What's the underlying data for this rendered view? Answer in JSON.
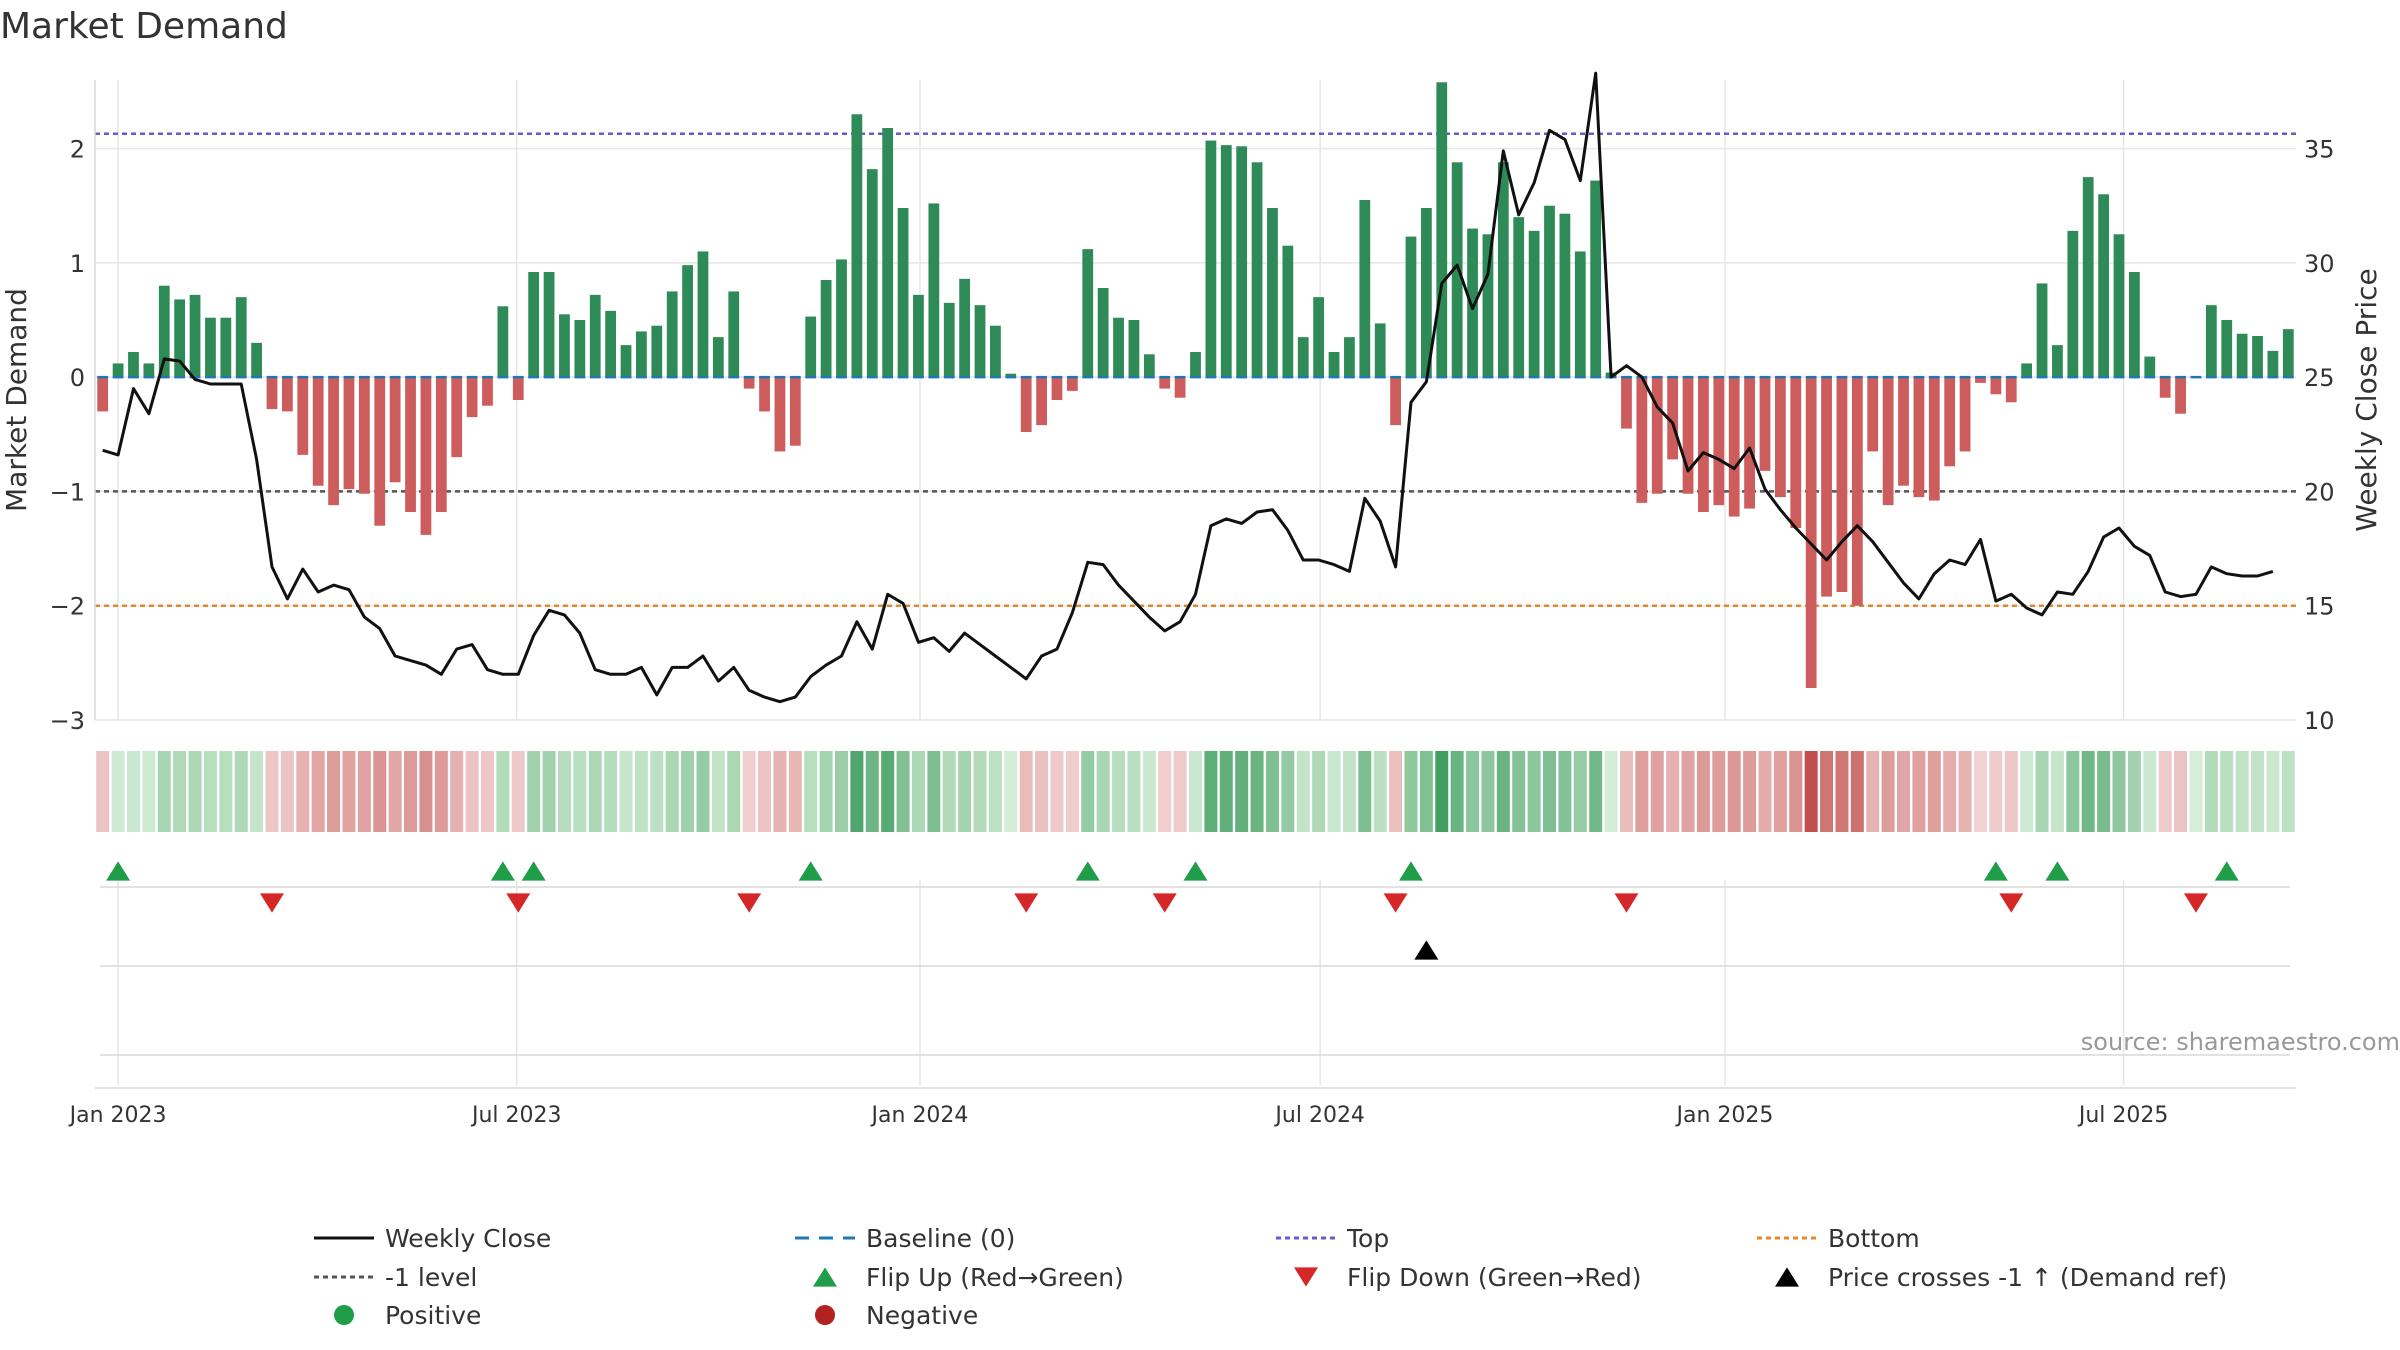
{
  "chart_data": {
    "type": "bar",
    "title": "Market Demand",
    "ylabel_left": "Market Demand",
    "ylabel_right": "Weekly Close Price",
    "ylim_left": [
      -3,
      2.6
    ],
    "ylim_right": [
      10,
      38
    ],
    "yticks_left": [
      2,
      1,
      0,
      -1,
      -2,
      -3
    ],
    "yticks_left_labels": [
      "2",
      "1",
      "0",
      "−1",
      "−2",
      "−3"
    ],
    "yticks_right": [
      35,
      30,
      25,
      20,
      15,
      10
    ],
    "x_start_week": -1,
    "x_ticks": [
      {
        "label": "Jan 2023",
        "week": 0
      },
      {
        "label": "Jul 2023",
        "week": 25.9
      },
      {
        "label": "Jan 2024",
        "week": 52.1
      },
      {
        "label": "Jul 2024",
        "week": 78.1
      },
      {
        "label": "Jan 2025",
        "week": 104.4
      },
      {
        "label": "Jul 2025",
        "week": 130.3
      }
    ],
    "series": [
      {
        "name": "Market Demand",
        "type": "bar",
        "values": [
          -0.3,
          0.12,
          0.22,
          0.12,
          0.8,
          0.68,
          0.72,
          0.52,
          0.52,
          0.7,
          0.3,
          -0.28,
          -0.3,
          -0.68,
          -0.95,
          -1.12,
          -0.98,
          -1.02,
          -1.3,
          -0.92,
          -1.18,
          -1.38,
          -1.18,
          -0.7,
          -0.35,
          -0.25,
          0.62,
          -0.2,
          0.92,
          0.92,
          0.55,
          0.5,
          0.72,
          0.58,
          0.28,
          0.4,
          0.45,
          0.75,
          0.98,
          1.1,
          0.35,
          0.75,
          -0.1,
          -0.3,
          -0.65,
          -0.6,
          0.53,
          0.85,
          1.03,
          2.3,
          1.82,
          2.18,
          1.48,
          0.72,
          1.52,
          0.65,
          0.86,
          0.63,
          0.45,
          0.03,
          -0.48,
          -0.42,
          -0.2,
          -0.12,
          1.12,
          0.78,
          0.52,
          0.5,
          0.2,
          -0.1,
          -0.18,
          0.22,
          2.07,
          2.03,
          2.02,
          1.88,
          1.48,
          1.15,
          0.35,
          0.7,
          0.22,
          0.35,
          1.55,
          0.47,
          -0.42,
          1.23,
          1.48,
          2.58,
          1.88,
          1.3,
          1.25,
          1.88,
          1.4,
          1.28,
          1.5,
          1.43,
          1.1,
          1.72,
          0.04,
          -0.45,
          -1.1,
          -1.02,
          -0.72,
          -1.02,
          -1.18,
          -1.12,
          -1.22,
          -1.15,
          -0.82,
          -1.05,
          -1.32,
          -2.72,
          -1.92,
          -1.88,
          -2.0,
          -0.65,
          -1.12,
          -0.95,
          -1.05,
          -1.08,
          -0.78,
          -0.65,
          -0.05,
          -0.15,
          -0.22,
          0.12,
          0.82,
          0.28,
          1.28,
          1.75,
          1.6,
          1.25,
          0.92,
          0.18,
          -0.18,
          -0.32,
          0.0,
          0.63,
          0.5,
          0.38,
          0.36,
          0.23,
          0.42
        ]
      },
      {
        "name": "Weekly Close",
        "type": "line",
        "values": [
          21.8,
          21.6,
          24.5,
          23.4,
          25.8,
          25.7,
          24.9,
          24.7,
          24.7,
          24.7,
          21.4,
          16.7,
          15.3,
          16.6,
          15.6,
          15.9,
          15.7,
          14.5,
          14.0,
          12.8,
          12.6,
          12.4,
          12.0,
          13.1,
          13.3,
          12.2,
          12.0,
          12.0,
          13.7,
          14.8,
          14.6,
          13.8,
          12.2,
          12.0,
          12.0,
          12.3,
          11.1,
          12.3,
          12.3,
          12.8,
          11.7,
          12.3,
          11.3,
          11.0,
          10.8,
          11.0,
          11.9,
          12.4,
          12.8,
          14.3,
          13.1,
          15.5,
          15.1,
          13.4,
          13.6,
          13.0,
          13.8,
          13.3,
          12.8,
          12.3,
          11.8,
          12.8,
          13.1,
          14.7,
          16.9,
          16.8,
          15.9,
          15.2,
          14.5,
          13.9,
          14.3,
          15.5,
          18.5,
          18.8,
          18.6,
          19.1,
          19.2,
          18.3,
          17.0,
          17.0,
          16.8,
          16.5,
          19.7,
          18.7,
          16.7,
          23.9,
          24.8,
          29.1,
          29.9,
          28.0,
          29.5,
          34.9,
          32.1,
          33.5,
          35.8,
          35.4,
          33.6,
          38.3,
          25.0,
          25.5,
          25.0,
          23.7,
          23.0,
          20.9,
          21.7,
          21.4,
          21.0,
          21.9,
          20.1,
          19.2,
          18.4,
          17.7,
          17.0,
          17.8,
          18.5,
          17.8,
          16.9,
          16.0,
          15.3,
          16.4,
          17.0,
          16.8,
          17.9,
          15.2,
          15.5,
          14.9,
          14.6,
          15.6,
          15.5,
          16.5,
          18.0,
          18.4,
          17.6,
          17.2,
          15.6,
          15.4,
          15.5,
          16.7,
          16.4,
          16.3,
          16.3,
          16.5
        ]
      }
    ],
    "reference_lines": [
      {
        "name": "Baseline (0)",
        "value": 0,
        "color": "#1f77b4"
      },
      {
        "name": "Top",
        "value": 2.13,
        "color": "#6a5acd"
      },
      {
        "name": "-1 level",
        "value": -1,
        "color": "#555555"
      },
      {
        "name": "Bottom",
        "value": -2,
        "color": "#e08a2c"
      }
    ],
    "flip_up_weeks": [
      0,
      25,
      27,
      45,
      63,
      70,
      84,
      122,
      126,
      137
    ],
    "flip_down_weeks": [
      10,
      26,
      41,
      59,
      68,
      83,
      98,
      123,
      135
    ],
    "price_cross_weeks": [
      85
    ],
    "legend": [
      {
        "label": "Weekly Close",
        "kind": "line-solid",
        "color": "#111111"
      },
      {
        "label": "Baseline (0)",
        "kind": "line-dashed",
        "color": "#1f77b4"
      },
      {
        "label": "Top",
        "kind": "line-dotted",
        "color": "#6a5acd"
      },
      {
        "label": "Bottom",
        "kind": "line-dotted",
        "color": "#e08a2c"
      },
      {
        "label": "-1 level",
        "kind": "line-dotted",
        "color": "#555555"
      },
      {
        "label": "Flip Up (Red→Green)",
        "kind": "tri-up",
        "color": "#1f9d48"
      },
      {
        "label": "Flip Down (Green→Red)",
        "kind": "tri-down",
        "color": "#d62728"
      },
      {
        "label": "Price crosses -1 ↑ (Demand ref)",
        "kind": "tri-up",
        "color": "#000000"
      },
      {
        "label": "Positive",
        "kind": "dot",
        "color": "#1f9d48"
      },
      {
        "label": "Negative",
        "kind": "dot",
        "color": "#b22222"
      }
    ],
    "source_note": "source: sharemaestro.com",
    "colors": {
      "positive_bar": "#2e8b57",
      "negative_bar": "#cd5c5c",
      "price_line": "#111111",
      "grid": "#e6e6e6",
      "axis_text": "#333333"
    }
  }
}
